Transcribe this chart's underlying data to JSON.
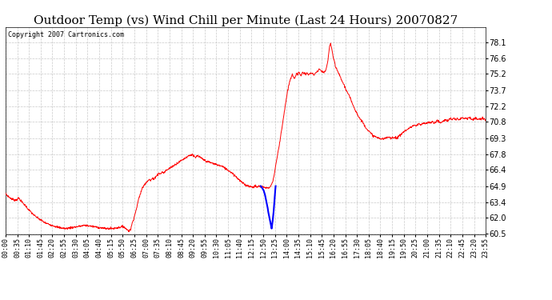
{
  "title": "Outdoor Temp (vs) Wind Chill per Minute (Last 24 Hours) 20070827",
  "copyright_text": "Copyright 2007 Cartronics.com",
  "background_color": "#ffffff",
  "plot_bg_color": "#ffffff",
  "grid_color": "#bbbbbb",
  "line_color_red": "#ff0000",
  "line_color_blue": "#0000ff",
  "ylim": [
    60.5,
    79.5
  ],
  "yticks": [
    60.5,
    62.0,
    63.4,
    64.9,
    66.4,
    67.8,
    69.3,
    70.8,
    72.2,
    73.7,
    75.2,
    76.6,
    78.1
  ],
  "xtick_labels": [
    "00:00",
    "00:35",
    "01:10",
    "01:45",
    "02:20",
    "02:55",
    "03:30",
    "04:05",
    "04:40",
    "05:15",
    "05:50",
    "06:25",
    "07:00",
    "07:35",
    "08:10",
    "08:45",
    "09:20",
    "09:55",
    "10:30",
    "11:05",
    "11:40",
    "12:15",
    "12:50",
    "13:25",
    "14:00",
    "14:35",
    "15:10",
    "15:45",
    "16:20",
    "16:55",
    "17:30",
    "18:05",
    "18:40",
    "19:15",
    "19:50",
    "20:25",
    "21:00",
    "21:35",
    "22:10",
    "22:45",
    "23:20",
    "23:55"
  ],
  "title_fontsize": 11,
  "copyright_fontsize": 6,
  "tick_fontsize": 6,
  "ytick_fontsize": 7,
  "waypoints_red": [
    [
      0,
      64.2
    ],
    [
      10,
      63.9
    ],
    [
      20,
      63.7
    ],
    [
      30,
      63.6
    ],
    [
      40,
      63.8
    ],
    [
      50,
      63.4
    ],
    [
      60,
      63.1
    ],
    [
      70,
      62.7
    ],
    [
      80,
      62.4
    ],
    [
      90,
      62.1
    ],
    [
      100,
      61.9
    ],
    [
      110,
      61.7
    ],
    [
      120,
      61.5
    ],
    [
      140,
      61.3
    ],
    [
      160,
      61.1
    ],
    [
      180,
      61.0
    ],
    [
      200,
      61.1
    ],
    [
      220,
      61.2
    ],
    [
      240,
      61.3
    ],
    [
      260,
      61.2
    ],
    [
      280,
      61.1
    ],
    [
      300,
      61.0
    ],
    [
      320,
      61.0
    ],
    [
      340,
      61.1
    ],
    [
      355,
      61.2
    ],
    [
      360,
      61.0
    ],
    [
      365,
      60.9
    ],
    [
      370,
      60.8
    ],
    [
      375,
      60.9
    ],
    [
      380,
      61.5
    ],
    [
      390,
      62.5
    ],
    [
      400,
      63.8
    ],
    [
      410,
      64.7
    ],
    [
      420,
      65.2
    ],
    [
      430,
      65.5
    ],
    [
      435,
      65.4
    ],
    [
      440,
      65.6
    ],
    [
      445,
      65.5
    ],
    [
      450,
      65.8
    ],
    [
      455,
      65.9
    ],
    [
      460,
      66.1
    ],
    [
      465,
      66.0
    ],
    [
      470,
      66.2
    ],
    [
      475,
      66.1
    ],
    [
      480,
      66.3
    ],
    [
      490,
      66.5
    ],
    [
      500,
      66.7
    ],
    [
      510,
      66.9
    ],
    [
      520,
      67.1
    ],
    [
      530,
      67.3
    ],
    [
      540,
      67.5
    ],
    [
      550,
      67.7
    ],
    [
      560,
      67.8
    ],
    [
      565,
      67.6
    ],
    [
      570,
      67.5
    ],
    [
      575,
      67.7
    ],
    [
      580,
      67.6
    ],
    [
      590,
      67.4
    ],
    [
      600,
      67.2
    ],
    [
      610,
      67.1
    ],
    [
      620,
      67.0
    ],
    [
      630,
      66.9
    ],
    [
      640,
      66.8
    ],
    [
      650,
      66.7
    ],
    [
      660,
      66.5
    ],
    [
      670,
      66.3
    ],
    [
      680,
      66.1
    ],
    [
      690,
      65.8
    ],
    [
      700,
      65.5
    ],
    [
      710,
      65.2
    ],
    [
      720,
      65.0
    ],
    [
      730,
      64.9
    ],
    [
      740,
      64.8
    ],
    [
      750,
      64.9
    ],
    [
      755,
      64.8
    ],
    [
      760,
      64.9
    ],
    [
      765,
      64.8
    ],
    [
      770,
      64.9
    ],
    [
      775,
      64.8
    ],
    [
      780,
      64.7
    ],
    [
      785,
      64.8
    ],
    [
      790,
      64.7
    ],
    [
      795,
      64.9
    ],
    [
      800,
      65.2
    ],
    [
      805,
      65.8
    ],
    [
      810,
      66.8
    ],
    [
      820,
      68.5
    ],
    [
      830,
      70.5
    ],
    [
      840,
      72.5
    ],
    [
      845,
      73.5
    ],
    [
      850,
      74.2
    ],
    [
      855,
      74.8
    ],
    [
      860,
      75.1
    ],
    [
      865,
      74.8
    ],
    [
      870,
      75.0
    ],
    [
      873,
      75.3
    ],
    [
      876,
      75.1
    ],
    [
      879,
      75.4
    ],
    [
      882,
      75.2
    ],
    [
      885,
      75.0
    ],
    [
      888,
      75.2
    ],
    [
      891,
      75.4
    ],
    [
      894,
      75.2
    ],
    [
      897,
      75.3
    ],
    [
      900,
      75.1
    ],
    [
      903,
      75.3
    ],
    [
      906,
      75.2
    ],
    [
      910,
      75.1
    ],
    [
      915,
      75.3
    ],
    [
      920,
      75.2
    ],
    [
      925,
      75.1
    ],
    [
      930,
      75.3
    ],
    [
      935,
      75.4
    ],
    [
      940,
      75.6
    ],
    [
      945,
      75.5
    ],
    [
      950,
      75.4
    ],
    [
      955,
      75.3
    ],
    [
      960,
      75.5
    ],
    [
      963,
      75.8
    ],
    [
      966,
      76.3
    ],
    [
      969,
      77.0
    ],
    [
      972,
      77.8
    ],
    [
      975,
      78.0
    ],
    [
      978,
      77.5
    ],
    [
      981,
      77.0
    ],
    [
      984,
      76.5
    ],
    [
      987,
      76.2
    ],
    [
      990,
      75.8
    ],
    [
      995,
      75.5
    ],
    [
      1000,
      75.2
    ],
    [
      1005,
      74.8
    ],
    [
      1010,
      74.5
    ],
    [
      1015,
      74.2
    ],
    [
      1020,
      73.8
    ],
    [
      1030,
      73.2
    ],
    [
      1040,
      72.5
    ],
    [
      1050,
      71.8
    ],
    [
      1060,
      71.2
    ],
    [
      1070,
      70.8
    ],
    [
      1080,
      70.3
    ],
    [
      1090,
      69.9
    ],
    [
      1100,
      69.6
    ],
    [
      1110,
      69.4
    ],
    [
      1120,
      69.3
    ],
    [
      1130,
      69.2
    ],
    [
      1140,
      69.3
    ],
    [
      1150,
      69.4
    ],
    [
      1155,
      69.3
    ],
    [
      1160,
      69.4
    ],
    [
      1165,
      69.3
    ],
    [
      1170,
      69.4
    ],
    [
      1175,
      69.3
    ],
    [
      1180,
      69.5
    ],
    [
      1185,
      69.6
    ],
    [
      1190,
      69.8
    ],
    [
      1195,
      69.9
    ],
    [
      1200,
      70.0
    ],
    [
      1205,
      70.1
    ],
    [
      1210,
      70.2
    ],
    [
      1215,
      70.3
    ],
    [
      1220,
      70.4
    ],
    [
      1225,
      70.5
    ],
    [
      1230,
      70.4
    ],
    [
      1235,
      70.5
    ],
    [
      1240,
      70.6
    ],
    [
      1245,
      70.5
    ],
    [
      1250,
      70.6
    ],
    [
      1255,
      70.7
    ],
    [
      1260,
      70.6
    ],
    [
      1265,
      70.7
    ],
    [
      1270,
      70.8
    ],
    [
      1275,
      70.7
    ],
    [
      1280,
      70.8
    ],
    [
      1285,
      70.7
    ],
    [
      1290,
      70.8
    ],
    [
      1295,
      70.9
    ],
    [
      1300,
      70.8
    ],
    [
      1305,
      70.7
    ],
    [
      1310,
      70.8
    ],
    [
      1315,
      70.9
    ],
    [
      1320,
      71.0
    ],
    [
      1325,
      70.9
    ],
    [
      1330,
      71.0
    ],
    [
      1335,
      71.1
    ],
    [
      1340,
      71.0
    ],
    [
      1345,
      71.1
    ],
    [
      1350,
      71.0
    ],
    [
      1355,
      71.1
    ],
    [
      1360,
      71.0
    ],
    [
      1365,
      71.1
    ],
    [
      1370,
      71.2
    ],
    [
      1375,
      71.1
    ],
    [
      1380,
      71.2
    ],
    [
      1385,
      71.1
    ],
    [
      1390,
      71.2
    ],
    [
      1395,
      71.1
    ],
    [
      1400,
      71.0
    ],
    [
      1410,
      71.1
    ],
    [
      1420,
      71.0
    ],
    [
      1430,
      71.1
    ],
    [
      1440,
      71.0
    ]
  ],
  "waypoints_blue": [
    [
      765,
      64.9
    ],
    [
      768,
      64.8
    ],
    [
      770,
      64.7
    ],
    [
      772,
      64.6
    ],
    [
      774,
      64.5
    ],
    [
      776,
      64.3
    ],
    [
      778,
      64.1
    ],
    [
      780,
      63.8
    ],
    [
      782,
      63.5
    ],
    [
      784,
      63.2
    ],
    [
      786,
      62.9
    ],
    [
      788,
      62.5
    ],
    [
      790,
      62.2
    ],
    [
      792,
      61.9
    ],
    [
      794,
      61.6
    ],
    [
      796,
      61.3
    ],
    [
      797,
      61.1
    ],
    [
      798,
      61.0
    ],
    [
      799,
      61.2
    ],
    [
      800,
      61.5
    ],
    [
      801,
      61.7
    ],
    [
      802,
      62.0
    ],
    [
      803,
      62.3
    ],
    [
      804,
      62.6
    ],
    [
      805,
      63.0
    ],
    [
      806,
      63.4
    ],
    [
      807,
      63.8
    ],
    [
      808,
      64.2
    ],
    [
      809,
      64.6
    ],
    [
      810,
      64.9
    ]
  ]
}
